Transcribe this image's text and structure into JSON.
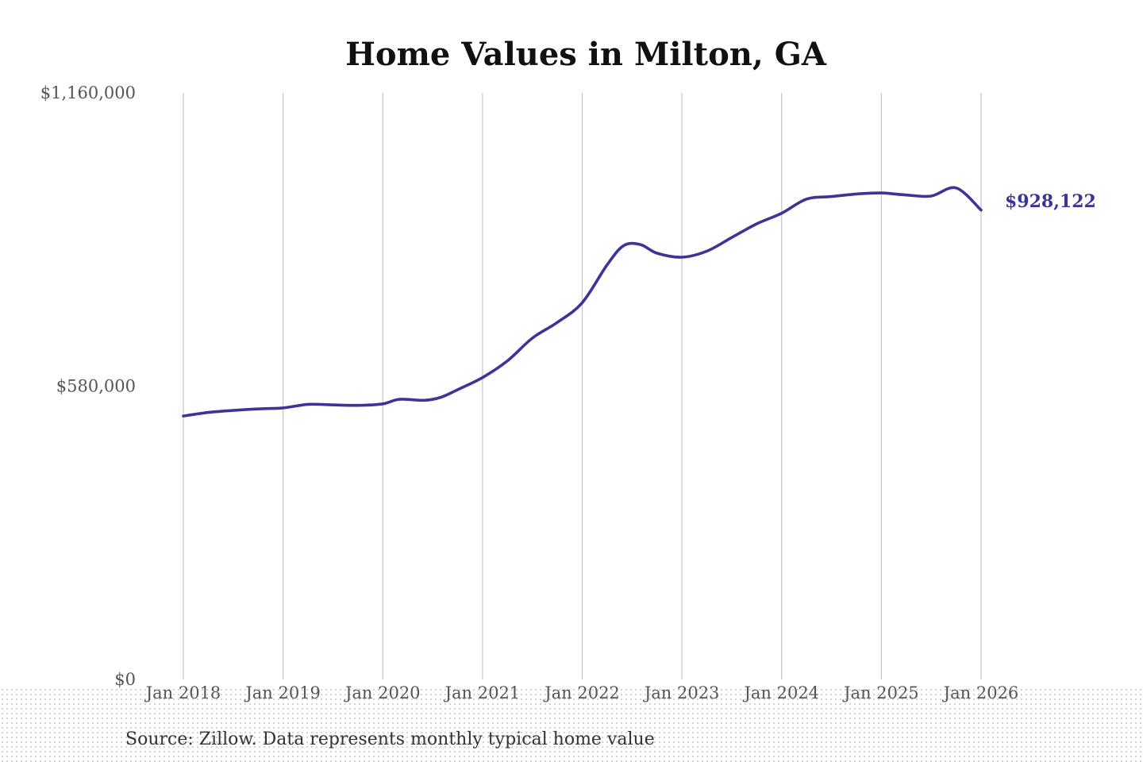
{
  "chart_data": {
    "type": "line",
    "title": "Home Values in Milton, GA",
    "xlabel": "",
    "ylabel": "",
    "x_tick_labels": [
      "Jan 2018",
      "Jan 2019",
      "Jan 2020",
      "Jan 2021",
      "Jan 2022",
      "Jan 2023",
      "Jan 2024",
      "Jan 2025",
      "Jan 2026"
    ],
    "y_tick_labels": [
      "$1,160,000",
      "$580,000",
      "$0"
    ],
    "y_ticks": [
      1160000,
      580000,
      0
    ],
    "ylim": [
      0,
      1160000
    ],
    "xlim": [
      "2018-01",
      "2026-02"
    ],
    "grid": "vertical",
    "line_color": "#3a3596",
    "end_label": "$928,122",
    "source": "Source: Zillow. Data represents monthly typical home value",
    "series": [
      {
        "points": [
          [
            "2018-01",
            521000
          ],
          [
            "2018-04",
            528000
          ],
          [
            "2018-07",
            532000
          ],
          [
            "2018-10",
            535000
          ],
          [
            "2019-01",
            537000
          ],
          [
            "2019-04",
            544000
          ],
          [
            "2019-07",
            543000
          ],
          [
            "2019-10",
            542000
          ],
          [
            "2020-01",
            545000
          ],
          [
            "2020-03",
            554000
          ],
          [
            "2020-06",
            552000
          ],
          [
            "2020-08",
            558000
          ],
          [
            "2020-10",
            573000
          ],
          [
            "2021-01",
            597000
          ],
          [
            "2021-04",
            630000
          ],
          [
            "2021-07",
            675000
          ],
          [
            "2021-10",
            706000
          ],
          [
            "2022-01",
            745000
          ],
          [
            "2022-04",
            820000
          ],
          [
            "2022-06",
            858000
          ],
          [
            "2022-08",
            860000
          ],
          [
            "2022-10",
            843000
          ],
          [
            "2023-01",
            835000
          ],
          [
            "2023-04",
            847000
          ],
          [
            "2023-07",
            874000
          ],
          [
            "2023-10",
            901000
          ],
          [
            "2024-01",
            922000
          ],
          [
            "2024-04",
            950000
          ],
          [
            "2024-07",
            955000
          ],
          [
            "2024-10",
            960000
          ],
          [
            "2025-01",
            962000
          ],
          [
            "2025-04",
            958000
          ],
          [
            "2025-07",
            956000
          ],
          [
            "2025-10",
            972000
          ],
          [
            "2026-01",
            928122
          ]
        ]
      }
    ]
  }
}
